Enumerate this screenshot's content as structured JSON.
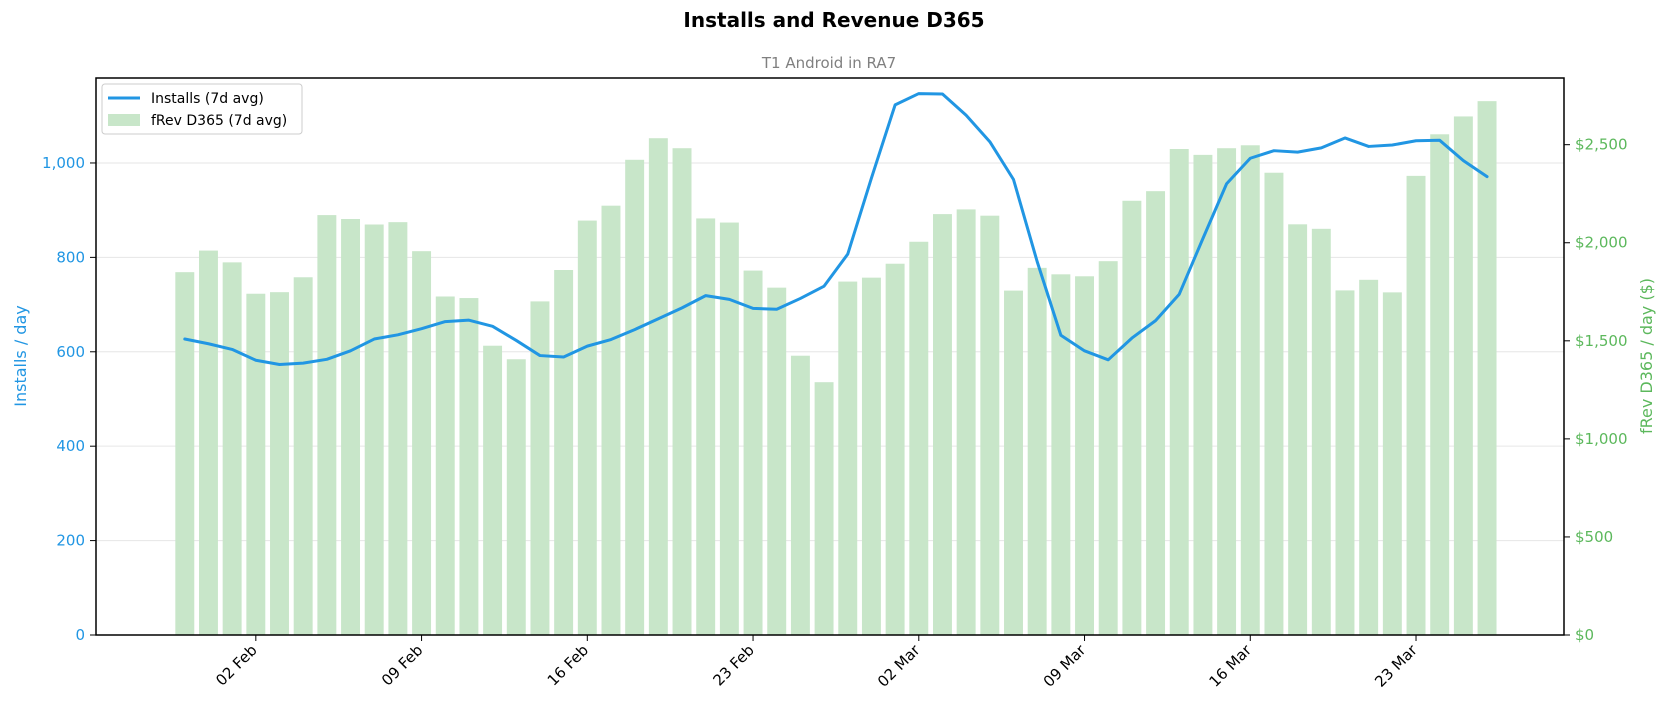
{
  "chart_data": {
    "type": "bar+line",
    "title": "Installs and Revenue D365",
    "subtitle": "T1 Android in RA7",
    "ylabel_left": "Installs / day",
    "ylabel_right": "fRev D365 / day ($)",
    "ylim_left": [
      0,
      1180
    ],
    "ylim_right": [
      0,
      2840
    ],
    "yticks_left": [
      0,
      200,
      400,
      600,
      800,
      1000
    ],
    "yticks_left_labels": [
      "0",
      "200",
      "400",
      "600",
      "800",
      "1,000"
    ],
    "yticks_right": [
      0,
      500,
      1000,
      1500,
      2000,
      2500
    ],
    "yticks_right_labels": [
      "$0",
      "$500",
      "$1,000",
      "$1,500",
      "$2,000",
      "$2,500"
    ],
    "x_day_range": [
      -3.75,
      58.25
    ],
    "x_tick_positions": [
      3,
      10,
      17,
      24,
      31,
      38,
      45,
      52
    ],
    "x_tick_labels": [
      "02 Feb",
      "09 Feb",
      "16 Feb",
      "23 Feb",
      "02 Mar",
      "09 Mar",
      "16 Mar",
      "23 Mar"
    ],
    "grid": "horizontal",
    "legend_position": "top-left",
    "colors": {
      "installs": "#2196e3",
      "revenue": "#c8e6c9",
      "revenue_axis": "#5cb85c",
      "grid": "#e6e6e6"
    },
    "series": [
      {
        "name": "Installs (7d avg)",
        "type": "line",
        "axis": "left",
        "values": [
          627,
          617,
          605,
          582,
          573,
          576,
          584,
          602,
          627,
          636,
          649,
          664,
          667,
          654,
          624,
          592,
          589,
          612,
          626,
          647,
          670,
          693,
          719,
          711,
          692,
          690,
          713,
          739,
          807,
          968,
          1123,
          1147,
          1146,
          1101,
          1045,
          965,
          791,
          635,
          602,
          583,
          629,
          666,
          722,
          840,
          956,
          1010,
          1026,
          1023,
          1032,
          1053,
          1035,
          1038,
          1047,
          1048,
          1005,
          971
        ]
      },
      {
        "name": "fRev D365 (7d avg)",
        "type": "bar",
        "axis": "right",
        "values": [
          1850,
          1960,
          1900,
          1740,
          1748,
          1824,
          2141,
          2121,
          2093,
          2105,
          1957,
          1726,
          1718,
          1475,
          1406,
          1701,
          1861,
          2113,
          2189,
          2423,
          2533,
          2482,
          2124,
          2103,
          1858,
          1771,
          1424,
          1289,
          1802,
          1822,
          1893,
          2005,
          2146,
          2170,
          2138,
          1756,
          1872,
          1839,
          1829,
          1906,
          2214,
          2263,
          2478,
          2448,
          2482,
          2497,
          2357,
          2094,
          2071,
          1757,
          1811,
          1747,
          2341,
          2553,
          2644,
          2722
        ]
      }
    ]
  }
}
